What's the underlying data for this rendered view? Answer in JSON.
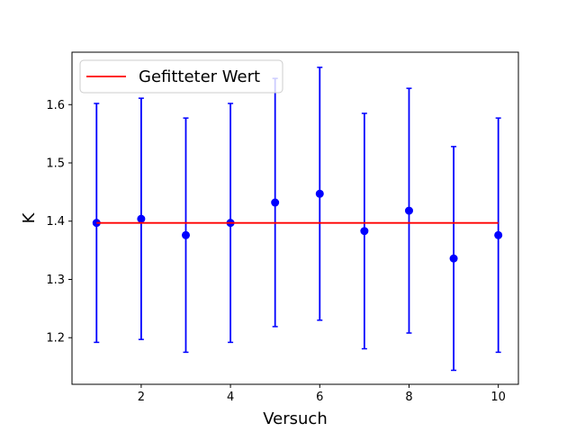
{
  "chart_data": {
    "type": "scatter",
    "xlabel": "Versuch",
    "ylabel": "K",
    "xlim": [
      0.45,
      10.45
    ],
    "ylim": [
      1.12,
      1.69
    ],
    "xticks": [
      2,
      4,
      6,
      8,
      10
    ],
    "yticks": [
      1.2,
      1.3,
      1.4,
      1.5,
      1.6
    ],
    "xtick_labels": [
      "2",
      "4",
      "6",
      "8",
      "10"
    ],
    "ytick_labels": [
      "1.2",
      "1.3",
      "1.4",
      "1.5",
      "1.6"
    ],
    "grid": false,
    "legend_position": "top-left",
    "series": [
      {
        "kind": "errorbar",
        "color": "#0000ff",
        "x": [
          1,
          2,
          3,
          4,
          5,
          6,
          7,
          8,
          9,
          10
        ],
        "y": [
          1.397,
          1.404,
          1.376,
          1.397,
          1.432,
          1.447,
          1.383,
          1.418,
          1.336,
          1.376
        ],
        "yerr": [
          0.205,
          0.207,
          0.201,
          0.205,
          0.213,
          0.217,
          0.202,
          0.21,
          0.192,
          0.201
        ]
      },
      {
        "kind": "line",
        "name": "Gefitteter Wert",
        "color": "#ff0000",
        "x": [
          1,
          10
        ],
        "y": [
          1.397,
          1.397
        ]
      }
    ]
  }
}
